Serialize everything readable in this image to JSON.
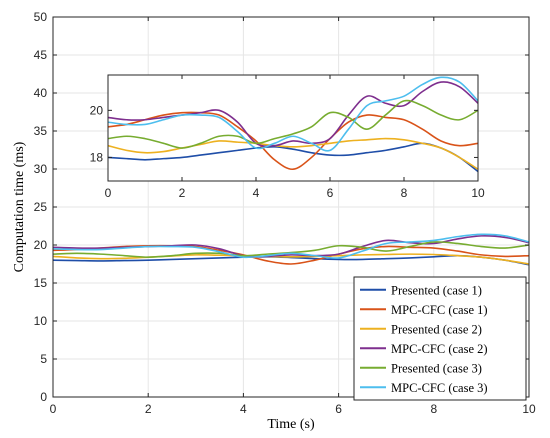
{
  "chart_data": {
    "type": "line",
    "xlabel": "Time (s)",
    "ylabel": "Computation time (ms)",
    "xlim": [
      0,
      10
    ],
    "ylim": [
      0,
      50
    ],
    "xticks": [
      "0",
      "2",
      "4",
      "6",
      "8",
      "10"
    ],
    "yticks": [
      "0",
      "5",
      "10",
      "15",
      "20",
      "25",
      "30",
      "35",
      "40",
      "45",
      "50"
    ],
    "grid": true,
    "legend_position": "bottom-right",
    "x": [
      0,
      0.5,
      1,
      1.5,
      2,
      2.5,
      3,
      3.5,
      4,
      4.5,
      5,
      5.5,
      6,
      6.5,
      7,
      7.5,
      8,
      8.5,
      9,
      9.5,
      10
    ],
    "series": [
      {
        "name": "Presented (case 1)",
        "color": "#1f4ea8",
        "values": [
          18.0,
          17.95,
          17.9,
          17.95,
          18.0,
          18.1,
          18.2,
          18.3,
          18.4,
          18.45,
          18.35,
          18.2,
          18.1,
          18.1,
          18.2,
          18.3,
          18.45,
          18.6,
          18.4,
          18.0,
          17.4
        ]
      },
      {
        "name": "MPC-CFC (case 1)",
        "color": "#d95319",
        "values": [
          19.3,
          19.4,
          19.6,
          19.8,
          19.9,
          19.9,
          19.8,
          19.3,
          18.7,
          17.9,
          17.5,
          18.0,
          18.8,
          19.5,
          19.8,
          19.7,
          19.6,
          19.2,
          18.7,
          18.5,
          18.6
        ]
      },
      {
        "name": "Presented (case 2)",
        "color": "#edb120",
        "values": [
          18.5,
          18.3,
          18.2,
          18.25,
          18.4,
          18.55,
          18.7,
          18.65,
          18.6,
          18.5,
          18.45,
          18.5,
          18.6,
          18.7,
          18.75,
          18.8,
          18.75,
          18.6,
          18.4,
          18.0,
          17.5
        ]
      },
      {
        "name": "MPC-CFC (case 2)",
        "color": "#7e2f8e",
        "values": [
          19.7,
          19.6,
          19.6,
          19.7,
          19.8,
          19.9,
          20.0,
          19.5,
          18.6,
          18.5,
          18.7,
          18.6,
          18.8,
          19.8,
          20.6,
          20.3,
          20.2,
          20.8,
          21.2,
          21.0,
          20.3
        ]
      },
      {
        "name": "Presented (case 3)",
        "color": "#77ac30",
        "values": [
          18.8,
          18.9,
          18.8,
          18.6,
          18.4,
          18.6,
          18.9,
          18.9,
          18.6,
          18.8,
          19.0,
          19.3,
          19.9,
          19.7,
          19.2,
          19.8,
          20.4,
          20.2,
          19.8,
          19.6,
          20.0
        ]
      },
      {
        "name": "MPC-CFC (case 3)",
        "color": "#4dbeee",
        "values": [
          19.5,
          19.4,
          19.4,
          19.6,
          19.8,
          19.8,
          19.7,
          19.1,
          18.4,
          18.6,
          18.9,
          18.6,
          18.3,
          19.2,
          20.2,
          20.4,
          20.6,
          21.1,
          21.4,
          21.2,
          20.4
        ]
      }
    ],
    "inset": {
      "xlim": [
        0,
        10
      ],
      "ylim": [
        17,
        21.5
      ],
      "xticks": [
        "0",
        "2",
        "4",
        "6",
        "8",
        "10"
      ],
      "yticks": [
        "18",
        "20"
      ],
      "grid": false
    }
  }
}
